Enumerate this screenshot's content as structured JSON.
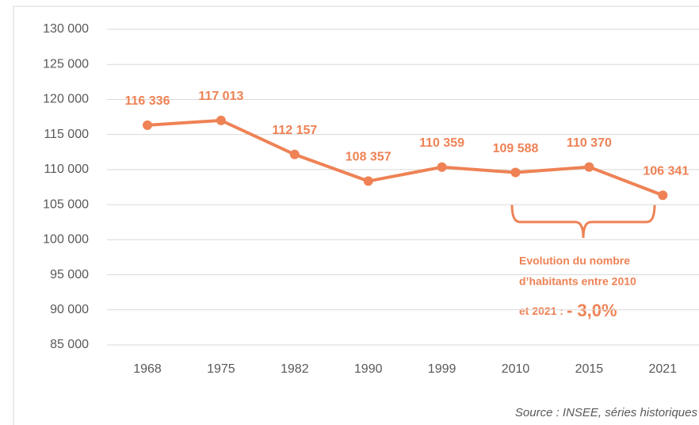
{
  "chart_data": {
    "type": "line",
    "categories": [
      "1968",
      "1975",
      "1982",
      "1990",
      "1999",
      "2010",
      "2015",
      "2021"
    ],
    "values": [
      116336,
      117013,
      112157,
      108357,
      110359,
      109588,
      110370,
      106341
    ],
    "value_labels": [
      "116 336",
      "117 013",
      "112 157",
      "108 357",
      "110 359",
      "109 588",
      "110 370",
      "106 341"
    ],
    "color": "#ee8255",
    "ylim": [
      85000,
      130000
    ],
    "yticks": [
      {
        "value": 85000,
        "label": "85 000"
      },
      {
        "value": 90000,
        "label": "90 000"
      },
      {
        "value": 95000,
        "label": "95 000"
      },
      {
        "value": 100000,
        "label": "100 000"
      },
      {
        "value": 105000,
        "label": "105 000"
      },
      {
        "value": 110000,
        "label": "110 000"
      },
      {
        "value": 115000,
        "label": "115 000"
      },
      {
        "value": 120000,
        "label": "120 000"
      },
      {
        "value": 125000,
        "label": "125 000"
      },
      {
        "value": 130000,
        "label": "130 000"
      }
    ],
    "grid": true,
    "annotation": {
      "lines": [
        "Evolution du nombre",
        "d’habitants entre 2010",
        "et 2021 : "
      ],
      "highlight": "- 3,0%"
    },
    "source": "Source : INSEE, séries historiques"
  }
}
